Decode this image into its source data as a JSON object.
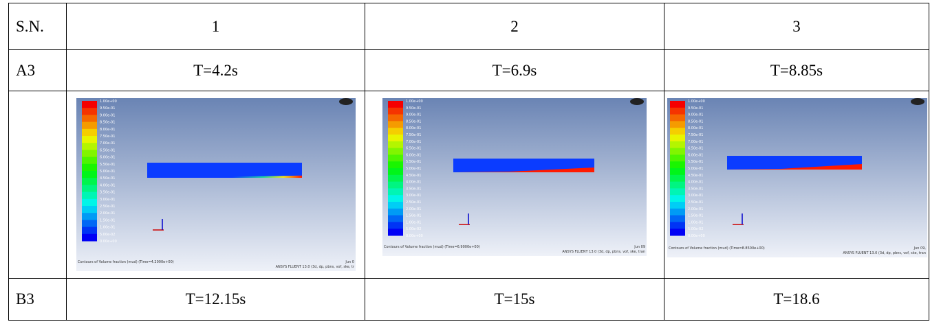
{
  "table": {
    "header": [
      "S.N.",
      "1",
      "2",
      "3"
    ],
    "rows": [
      [
        "A3",
        "T=4.2s",
        "T=6.9s",
        "T=8.85s"
      ],
      [
        "B3",
        "T=12.15s",
        "T=15s",
        "T=18.6"
      ]
    ]
  },
  "legend_labels": [
    "1.00e+00",
    "9.50e-01",
    "9.00e-01",
    "8.50e-01",
    "8.00e-01",
    "7.50e-01",
    "7.00e-01",
    "6.50e-01",
    "6.00e-01",
    "5.50e-01",
    "5.00e-01",
    "4.50e-01",
    "4.00e-01",
    "3.50e-01",
    "3.00e-01",
    "2.50e-01",
    "2.00e-01",
    "1.50e-01",
    "1.00e-01",
    "5.00e-02",
    "0.00e+00"
  ],
  "images": [
    {
      "caption": "Contours of Volume fraction (mud)  (Time=4.2000e+00)",
      "date": "Jun 0",
      "software": "ANSYS FLUENT 13.0 (3d, dp, pbns, vof, ske, tr"
    },
    {
      "caption": "Contours of Volume fraction (mud)  (Time=6.9000e+00)",
      "date": "Jun 09",
      "software": "ANSYS FLUENT 13.0 (3d, dp, pbns, vof, ske, tran"
    },
    {
      "caption": "Contours of Volume fraction (mud)  (Time=8.8500e+00)",
      "date": "Jun 09,",
      "software": "ANSYS FLUENT 13.0 (3d, dp, pbns, vof, ske, tran"
    }
  ]
}
